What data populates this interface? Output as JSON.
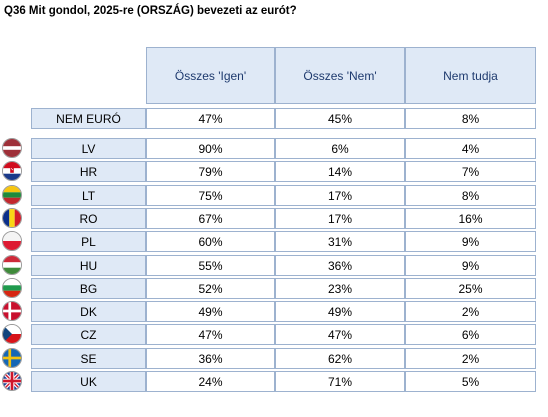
{
  "title": "Q36 Mit gondol, 2025-re (ORSZÁG) bevezeti az eurót?",
  "chart_data": {
    "type": "table",
    "columns": [
      "Összes 'Igen'",
      "Összes 'Nem'",
      "Nem tudja"
    ],
    "summary_row": {
      "label": "NEM EURÓ",
      "values": [
        "47%",
        "45%",
        "8%"
      ]
    },
    "rows": [
      {
        "label": "LV",
        "flag": "latvia-flag-icon",
        "values": [
          "90%",
          "6%",
          "4%"
        ]
      },
      {
        "label": "HR",
        "flag": "croatia-flag-icon",
        "values": [
          "79%",
          "14%",
          "7%"
        ]
      },
      {
        "label": "LT",
        "flag": "lithuania-flag-icon",
        "values": [
          "75%",
          "17%",
          "8%"
        ]
      },
      {
        "label": "RO",
        "flag": "romania-flag-icon",
        "values": [
          "67%",
          "17%",
          "16%"
        ]
      },
      {
        "label": "PL",
        "flag": "poland-flag-icon",
        "values": [
          "60%",
          "31%",
          "9%"
        ]
      },
      {
        "label": "HU",
        "flag": "hungary-flag-icon",
        "values": [
          "55%",
          "36%",
          "9%"
        ]
      },
      {
        "label": "BG",
        "flag": "bulgaria-flag-icon",
        "values": [
          "52%",
          "23%",
          "25%"
        ]
      },
      {
        "label": "DK",
        "flag": "denmark-flag-icon",
        "values": [
          "49%",
          "49%",
          "2%"
        ]
      },
      {
        "label": "CZ",
        "flag": "czechia-flag-icon",
        "values": [
          "47%",
          "47%",
          "6%"
        ]
      },
      {
        "label": "SE",
        "flag": "sweden-flag-icon",
        "values": [
          "36%",
          "62%",
          "2%"
        ]
      },
      {
        "label": "UK",
        "flag": "uk-flag-icon",
        "values": [
          "24%",
          "71%",
          "5%"
        ]
      }
    ]
  },
  "colors": {
    "header_bg": "#dfe9f6",
    "header_text": "#1e3a6e",
    "border": "#9db2cf"
  }
}
